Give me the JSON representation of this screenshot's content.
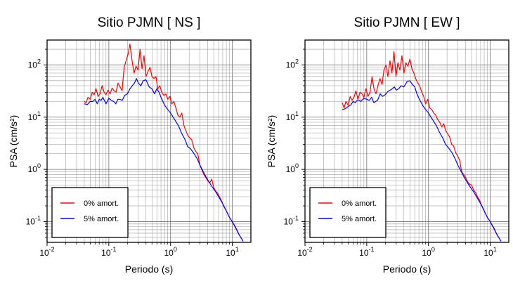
{
  "chart_data": [
    {
      "type": "line",
      "title": "Sitio PJMN [ NS ]",
      "xlabel": "Periodo (s)",
      "ylabel": "PSA (cm/s²)",
      "x_scale": "log",
      "y_scale": "log",
      "xlim": [
        0.01,
        20
      ],
      "ylim": [
        0.04,
        300
      ],
      "grid": true,
      "legend_position": "bottom-left",
      "x_ticks": [
        {
          "value": 0.01,
          "base": "10",
          "exp": "-2"
        },
        {
          "value": 0.1,
          "base": "10",
          "exp": "-1"
        },
        {
          "value": 1,
          "base": "10",
          "exp": "0"
        },
        {
          "value": 10,
          "base": "10",
          "exp": "1"
        }
      ],
      "y_ticks": [
        {
          "value": 0.1,
          "base": "10",
          "exp": "-1"
        },
        {
          "value": 1,
          "base": "10",
          "exp": "0"
        },
        {
          "value": 10,
          "base": "10",
          "exp": "1"
        },
        {
          "value": 100,
          "base": "10",
          "exp": "2"
        }
      ],
      "series": [
        {
          "name": "0% amort.",
          "color": "#ff0000",
          "x": [
            0.04,
            0.043,
            0.046,
            0.05,
            0.054,
            0.058,
            0.062,
            0.067,
            0.072,
            0.078,
            0.084,
            0.09,
            0.097,
            0.105,
            0.113,
            0.122,
            0.131,
            0.141,
            0.152,
            0.164,
            0.177,
            0.19,
            0.205,
            0.22,
            0.238,
            0.256,
            0.276,
            0.298,
            0.32,
            0.345,
            0.372,
            0.4,
            0.43,
            0.465,
            0.5,
            0.54,
            0.58,
            0.62,
            0.67,
            0.72,
            0.78,
            0.84,
            0.9,
            0.97,
            1.05,
            1.13,
            1.22,
            1.31,
            1.41,
            1.52,
            1.64,
            1.77,
            1.9,
            2.05,
            2.2,
            2.38,
            2.56,
            2.76,
            2.98,
            3.2,
            3.45,
            3.72,
            4.0,
            4.3,
            4.65,
            5.0,
            5.4,
            5.8,
            6.2,
            6.7,
            7.2,
            8.0,
            9.0,
            10.0,
            11.0,
            12.5,
            14.0,
            15.0
          ],
          "y": [
            20,
            19,
            24,
            22,
            30,
            27,
            35,
            25,
            28,
            40,
            30,
            27,
            33,
            28,
            36,
            32,
            30,
            45,
            38,
            32,
            90,
            120,
            160,
            250,
            120,
            70,
            95,
            80,
            200,
            85,
            150,
            60,
            75,
            90,
            60,
            55,
            60,
            35,
            40,
            30,
            26,
            28,
            22,
            25,
            18,
            20,
            15,
            11,
            10,
            12,
            7,
            5.5,
            4.5,
            4.0,
            3.7,
            2.6,
            2.2,
            2.0,
            1.2,
            1.0,
            0.8,
            0.7,
            0.6,
            0.55,
            0.65,
            0.45,
            0.38,
            0.35,
            0.3,
            0.25,
            0.2,
            0.16,
            0.12,
            0.1,
            0.08,
            0.06,
            0.048,
            0.042
          ]
        },
        {
          "name": "5% amort.",
          "color": "#0000ff",
          "x": [
            0.04,
            0.045,
            0.05,
            0.055,
            0.06,
            0.065,
            0.07,
            0.075,
            0.08,
            0.09,
            0.1,
            0.11,
            0.12,
            0.13,
            0.14,
            0.15,
            0.165,
            0.18,
            0.2,
            0.22,
            0.24,
            0.26,
            0.28,
            0.3,
            0.33,
            0.36,
            0.4,
            0.45,
            0.5,
            0.55,
            0.6,
            0.65,
            0.7,
            0.8,
            0.9,
            1.0,
            1.1,
            1.2,
            1.35,
            1.5,
            1.7,
            1.9,
            2.1,
            2.4,
            2.7,
            3.0,
            3.4,
            3.8,
            4.3,
            4.8,
            5.4,
            6.0,
            7.0,
            8.0,
            9.0,
            10.0,
            11.5,
            13.0,
            15.0
          ],
          "y": [
            18,
            17.5,
            20,
            20,
            22,
            18,
            22,
            21,
            24,
            18,
            23,
            21,
            20,
            18,
            22,
            22,
            21,
            26,
            28,
            35,
            40,
            45,
            55,
            45,
            40,
            50,
            52,
            38,
            35,
            28,
            35,
            30,
            24,
            17,
            14,
            12,
            10,
            8.5,
            6.8,
            5.0,
            3.8,
            2.7,
            2.5,
            2.0,
            1.6,
            1.2,
            0.9,
            0.7,
            0.55,
            0.45,
            0.37,
            0.3,
            0.22,
            0.16,
            0.12,
            0.1,
            0.075,
            0.055,
            0.042
          ]
        }
      ]
    },
    {
      "type": "line",
      "title": "Sitio PJMN [ EW ]",
      "xlabel": "Periodo (s)",
      "ylabel": "PSA (cm/s²)",
      "x_scale": "log",
      "y_scale": "log",
      "xlim": [
        0.01,
        20
      ],
      "ylim": [
        0.04,
        300
      ],
      "grid": true,
      "legend_position": "bottom-left",
      "x_ticks": [
        {
          "value": 0.01,
          "base": "10",
          "exp": "-2"
        },
        {
          "value": 0.1,
          "base": "10",
          "exp": "-1"
        },
        {
          "value": 1,
          "base": "10",
          "exp": "0"
        },
        {
          "value": 10,
          "base": "10",
          "exp": "1"
        }
      ],
      "y_ticks": [
        {
          "value": 0.1,
          "base": "10",
          "exp": "-1"
        },
        {
          "value": 1,
          "base": "10",
          "exp": "0"
        },
        {
          "value": 10,
          "base": "10",
          "exp": "1"
        },
        {
          "value": 100,
          "base": "10",
          "exp": "2"
        }
      ],
      "series": [
        {
          "name": "0% amort.",
          "color": "#ff0000",
          "x": [
            0.04,
            0.043,
            0.046,
            0.05,
            0.054,
            0.058,
            0.062,
            0.067,
            0.072,
            0.078,
            0.084,
            0.09,
            0.097,
            0.105,
            0.113,
            0.122,
            0.131,
            0.141,
            0.152,
            0.164,
            0.177,
            0.19,
            0.205,
            0.22,
            0.238,
            0.256,
            0.276,
            0.298,
            0.32,
            0.345,
            0.372,
            0.4,
            0.43,
            0.465,
            0.5,
            0.54,
            0.58,
            0.62,
            0.67,
            0.72,
            0.78,
            0.84,
            0.9,
            0.97,
            1.05,
            1.13,
            1.22,
            1.31,
            1.41,
            1.52,
            1.64,
            1.77,
            1.9,
            2.05,
            2.2,
            2.38,
            2.56,
            2.76,
            2.98,
            3.2,
            3.45,
            3.72,
            4.0,
            4.3,
            4.65,
            5.0,
            5.4,
            5.8,
            6.2,
            6.7,
            7.2,
            8.0,
            9.0,
            10.0,
            11.0,
            12.5,
            14.0,
            15.0
          ],
          "y": [
            19,
            15,
            20,
            17,
            25,
            21,
            24,
            32,
            22,
            30,
            28,
            24,
            35,
            25,
            30,
            60,
            35,
            28,
            40,
            55,
            42,
            80,
            100,
            60,
            120,
            70,
            180,
            60,
            110,
            80,
            150,
            70,
            110,
            95,
            130,
            85,
            70,
            55,
            45,
            40,
            30,
            25,
            18,
            22,
            15,
            14,
            12,
            11,
            9,
            8,
            6.5,
            7.5,
            5.5,
            4.8,
            4.2,
            3.0,
            2.8,
            2.1,
            1.8,
            1.5,
            0.9,
            0.8,
            0.7,
            0.58,
            0.52,
            0.5,
            0.4,
            0.36,
            0.3,
            0.26,
            0.21,
            0.16,
            0.12,
            0.1,
            0.08,
            0.06,
            0.048,
            0.042
          ]
        },
        {
          "name": "5% amort.",
          "color": "#0000ff",
          "x": [
            0.04,
            0.045,
            0.05,
            0.055,
            0.06,
            0.065,
            0.07,
            0.075,
            0.08,
            0.09,
            0.1,
            0.11,
            0.12,
            0.13,
            0.14,
            0.15,
            0.165,
            0.18,
            0.2,
            0.22,
            0.24,
            0.26,
            0.28,
            0.3,
            0.33,
            0.36,
            0.4,
            0.45,
            0.5,
            0.55,
            0.6,
            0.65,
            0.7,
            0.8,
            0.9,
            1.0,
            1.1,
            1.2,
            1.35,
            1.5,
            1.7,
            1.9,
            2.1,
            2.4,
            2.7,
            3.0,
            3.4,
            3.8,
            4.3,
            4.8,
            5.4,
            6.0,
            7.0,
            8.0,
            9.0,
            10.0,
            11.5,
            13.0,
            15.0
          ],
          "y": [
            14,
            14.5,
            16,
            17,
            20,
            19,
            21,
            21,
            20,
            23,
            22,
            21,
            24,
            19,
            20,
            21,
            28,
            25,
            27,
            31,
            33,
            35,
            38,
            33,
            35,
            40,
            38,
            48,
            50,
            42,
            38,
            28,
            23,
            17,
            14,
            12,
            10,
            8.5,
            6.8,
            5.2,
            4.0,
            3.0,
            2.6,
            2.1,
            1.6,
            1.2,
            0.9,
            0.7,
            0.55,
            0.45,
            0.37,
            0.3,
            0.22,
            0.16,
            0.12,
            0.1,
            0.075,
            0.055,
            0.042
          ]
        }
      ]
    }
  ]
}
